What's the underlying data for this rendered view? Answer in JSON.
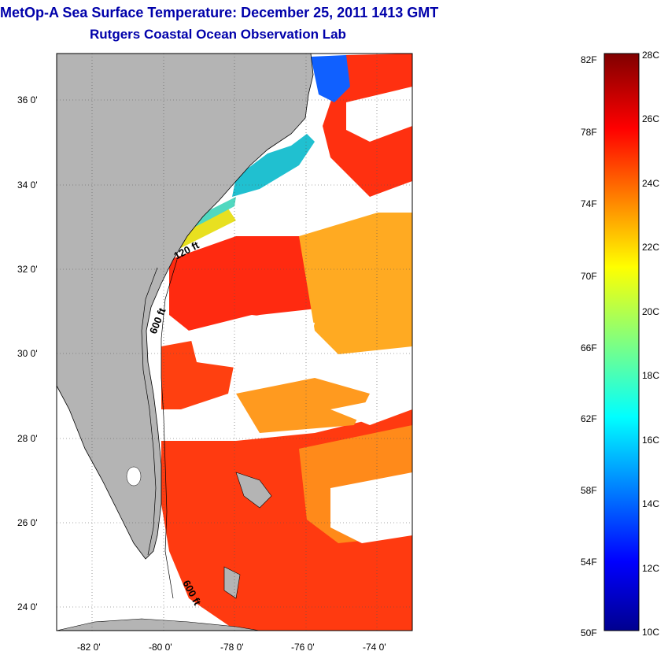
{
  "title": "MetOp-A Sea Surface Temperature:  December 25, 2011 1413 GMT",
  "subtitle": "Rutgers Coastal Ocean Observation Lab",
  "map": {
    "lon_range": [
      -83,
      -73
    ],
    "lat_range": [
      23,
      37
    ],
    "lon_ticks": [
      "-82 0'",
      "-80 0'",
      "-78 0'",
      "-76 0'",
      "-74 0'"
    ],
    "lat_ticks": [
      "36 0'",
      "34 0'",
      "32 0'",
      "30 0'",
      "28 0'",
      "26 0'",
      "24 0'"
    ],
    "contour_labels": [
      "120 ft",
      "600 ft",
      "600 ft"
    ],
    "land_color": "#b4b4b4",
    "cloud_color": "#ffffff"
  },
  "colorbar": {
    "fahrenheit_labels": [
      "82F",
      "78F",
      "74F",
      "70F",
      "66F",
      "62F",
      "58F",
      "54F",
      "50F"
    ],
    "celsius_labels": [
      "28C",
      "26C",
      "24C",
      "22C",
      "20C",
      "18C",
      "16C",
      "14C",
      "12C",
      "10C"
    ],
    "colormap": "jet"
  }
}
